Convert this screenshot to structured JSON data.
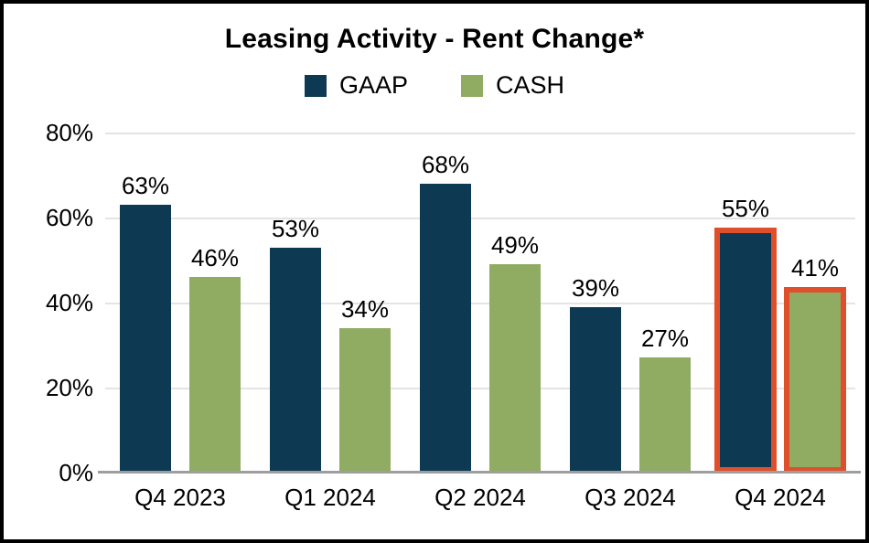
{
  "title": "Leasing Activity - Rent Change*",
  "colors": {
    "gaap": "#0d3a52",
    "cash": "#8fac62",
    "highlight_outline": "#e04f2c",
    "gridline": "#e4e4e4",
    "axis_line": "#9e9e9e",
    "frame_border": "#000000"
  },
  "chart_data": {
    "type": "bar",
    "title": "Leasing Activity - Rent Change*",
    "categories": [
      "Q4 2023",
      "Q1 2024",
      "Q2 2024",
      "Q3 2024",
      "Q4 2024"
    ],
    "series": [
      {
        "name": "GAAP",
        "color": "#0d3a52",
        "values": [
          63,
          53,
          68,
          39,
          55
        ]
      },
      {
        "name": "CASH",
        "color": "#8fac62",
        "values": [
          46,
          34,
          49,
          27,
          41
        ]
      }
    ],
    "data_labels": [
      [
        "63%",
        "53%",
        "68%",
        "39%",
        "55%"
      ],
      [
        "46%",
        "34%",
        "49%",
        "27%",
        "41%"
      ]
    ],
    "y_ticks": [
      "80%",
      "60%",
      "40%",
      "20%",
      "0%"
    ],
    "ylim": [
      0,
      80
    ],
    "grid": "horizontal",
    "legend_position": "top",
    "highlight": {
      "category": "Q4 2024",
      "outline_color": "#e04f2c"
    }
  }
}
